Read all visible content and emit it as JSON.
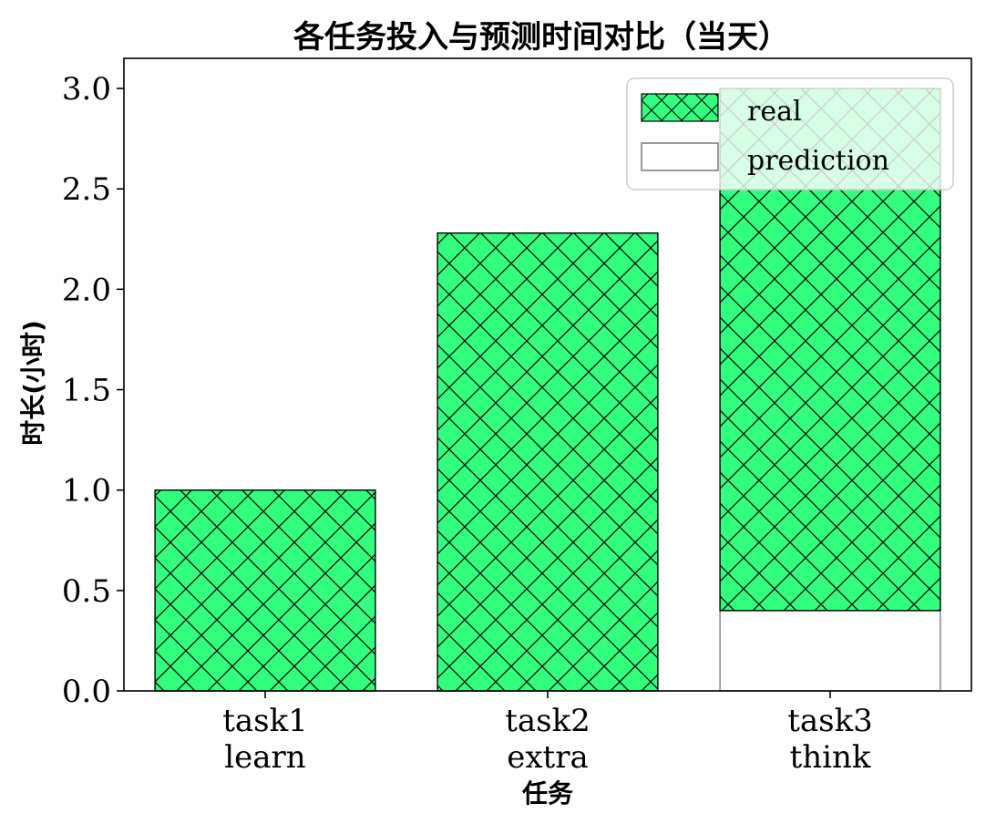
{
  "chart_data": {
    "type": "bar",
    "title": "各任务投入与预测时间对比（当天）",
    "xlabel": "任务",
    "ylabel": "时长(小时)",
    "categories": [
      [
        "task1",
        "learn"
      ],
      [
        "task2",
        "extra"
      ],
      [
        "task3",
        "think"
      ]
    ],
    "ylim": [
      0,
      3.15
    ],
    "yticks": [
      "0.0",
      "0.5",
      "1.0",
      "1.5",
      "2.0",
      "2.5",
      "3.0"
    ],
    "grid": false,
    "legend_position": "top-right",
    "series": [
      {
        "name": "real",
        "style": "stacked-on-prediction",
        "values": [
          1.0,
          2.28,
          2.6
        ],
        "fill": "#33ff7f",
        "hatch": "x",
        "edge": "#000000"
      },
      {
        "name": "prediction",
        "style": "base",
        "values": [
          0.0,
          0.0,
          0.4
        ],
        "fill": "#ffffff",
        "edge": "#808080"
      }
    ]
  }
}
